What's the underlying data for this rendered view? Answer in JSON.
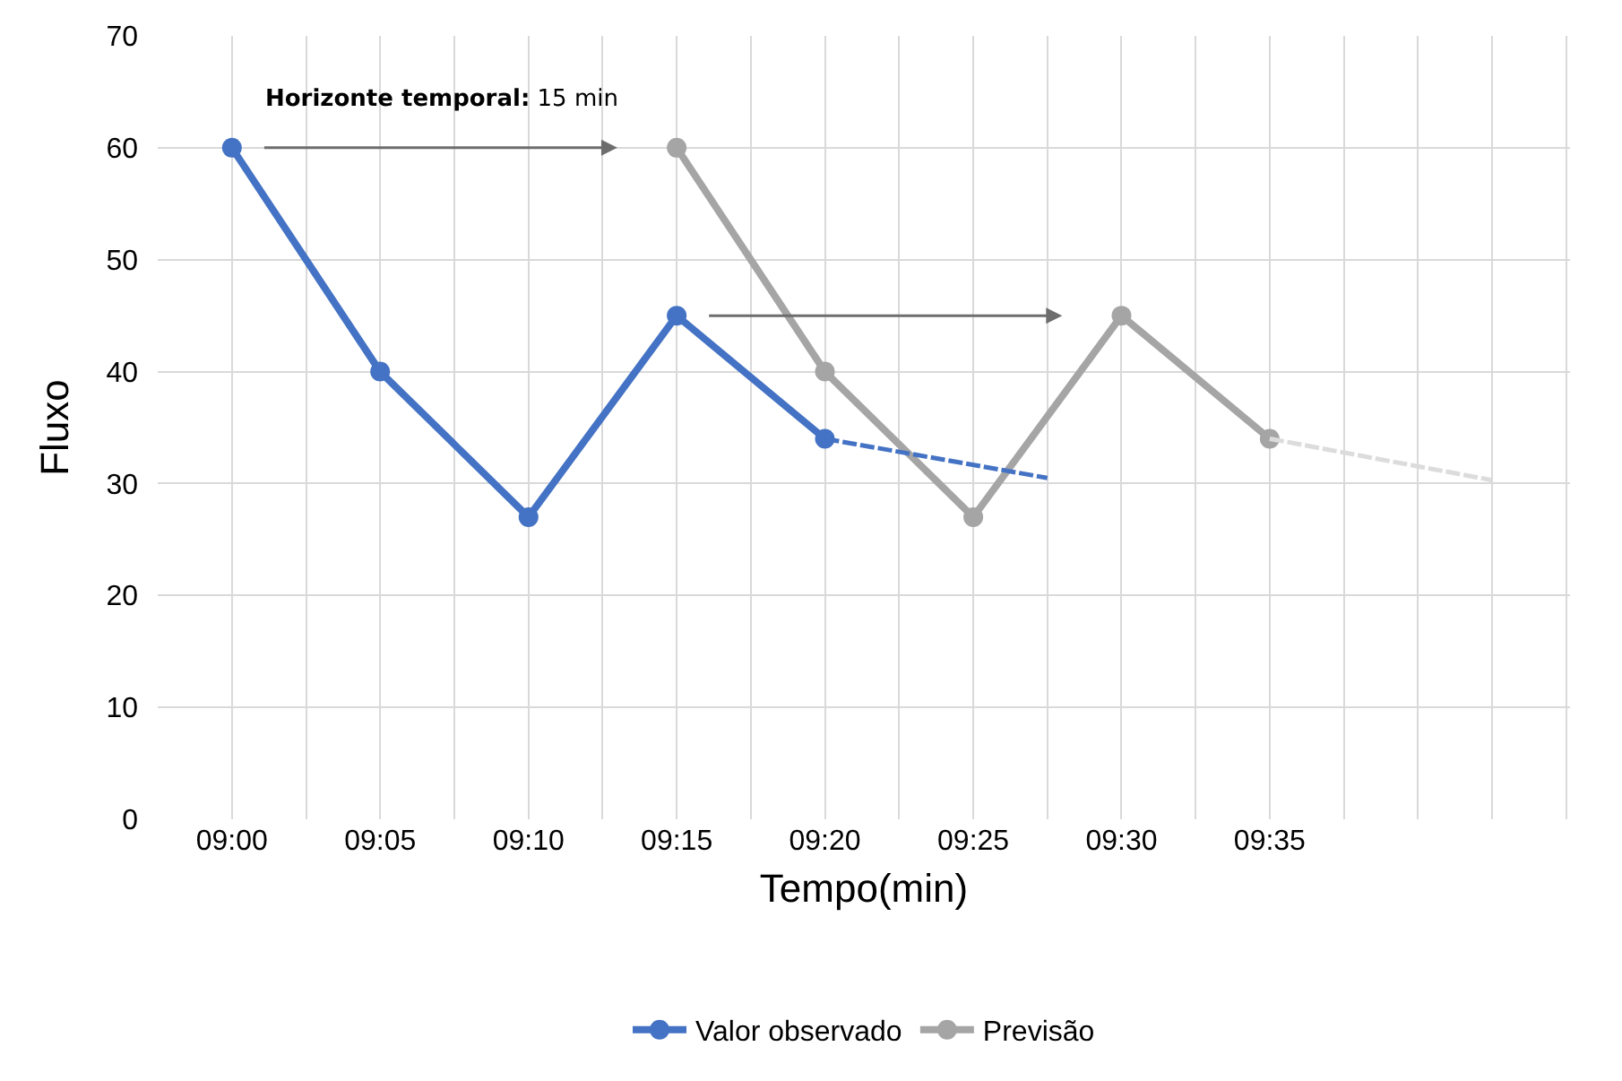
{
  "chart_data": {
    "type": "line",
    "xlabel": "Tempo(min)",
    "ylabel": "Fluxo",
    "annotations": [
      "Horizonte temporal: 15 min"
    ],
    "xlim": [
      8.9583,
      9.7521
    ],
    "xticks": [
      {
        "value": 9,
        "label": "09:00"
      },
      {
        "value": 9.0417,
        "label": null
      },
      {
        "value": 9.0833,
        "label": "09:05"
      },
      {
        "value": 9.125,
        "label": null
      },
      {
        "value": 9.1667,
        "label": "09:10"
      },
      {
        "value": 9.2083,
        "label": null
      },
      {
        "value": 9.25,
        "label": "09:15"
      },
      {
        "value": 9.2917,
        "label": null
      },
      {
        "value": 9.3333,
        "label": "09:20"
      },
      {
        "value": 9.375,
        "label": null
      },
      {
        "value": 9.4167,
        "label": "09:25"
      },
      {
        "value": 9.4583,
        "label": null
      },
      {
        "value": 9.5,
        "label": "09:30"
      },
      {
        "value": 9.5417,
        "label": null
      },
      {
        "value": 9.5833,
        "label": "09:35"
      },
      {
        "value": 9.625,
        "label": null
      },
      {
        "value": 9.6667,
        "label": null
      },
      {
        "value": 9.7083,
        "label": null
      },
      {
        "value": 9.75,
        "label": null
      }
    ],
    "ylim": [
      0,
      70
    ],
    "yticks": [
      0,
      10,
      20,
      30,
      40,
      50,
      60,
      70
    ],
    "grid": true,
    "legend": "bottom",
    "marker": "circle",
    "line_style": "solid",
    "series": [
      {
        "name": "Valor observado",
        "color": "#4472c4",
        "x": [
          9,
          9.0833,
          9.1667,
          9.25,
          9.3333
        ],
        "values": [
          60,
          40,
          27,
          45,
          34
        ]
      },
      {
        "name": "Previsão",
        "color": "#a5a5a5",
        "x": [
          9.25,
          9.3333,
          9.4167,
          9.5,
          9.5833
        ],
        "values": [
          60,
          40,
          27,
          45,
          34
        ]
      },
      {
        "color": "#4472c4",
        "x": [
          9.3333,
          9.4583
        ],
        "values": [
          34,
          30.5
        ],
        "marker": "none",
        "line_style": "dashed"
      },
      {
        "color": "#dcdcdc",
        "x": [
          9.5833,
          9.7083
        ],
        "values": [
          34,
          30.3
        ],
        "marker": "none",
        "line_style": "dashed"
      }
    ]
  }
}
